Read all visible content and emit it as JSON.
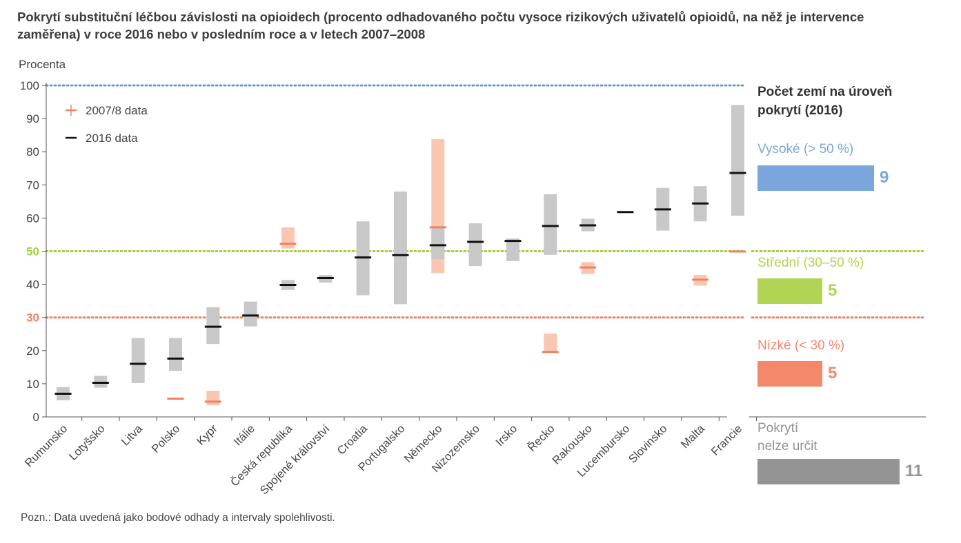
{
  "title_lines": [
    "Pokrytí substituční léčbou závislosti na opioidech (procento odhadovaného počtu vysoce rizikových uživatelů opioidů, na něž je intervence",
    "zaměřena) v roce 2016 nebo v posledním roce a v letech 2007–2008"
  ],
  "note": "Pozn.: Data uvedená jako bodové odhady a intervaly spolehlivosti.",
  "colors": {
    "grey_range": "#c8c8c8",
    "salmon_range": "#f9c6b2",
    "marker_2016": "#111111",
    "marker_2007": "#f08060",
    "high": "#7aa6db",
    "medium": "#b2d454",
    "low": "#f4886a",
    "undetermined": "#949494"
  },
  "chart_data": {
    "type": "range-point",
    "ylabel": "Procenta",
    "ylim": [
      0,
      100
    ],
    "yticks": [
      0,
      10,
      20,
      30,
      40,
      50,
      60,
      70,
      80,
      90,
      100
    ],
    "legend": [
      {
        "name": "2007/8 data",
        "color": "#f08060"
      },
      {
        "name": "2016 data",
        "color": "#111111"
      }
    ],
    "reference_lines": [
      {
        "value": 100,
        "color": "#6b97db"
      },
      {
        "value": 50,
        "color": "#a8cf3c"
      },
      {
        "value": 30,
        "color": "#f08060"
      }
    ],
    "countries": [
      {
        "name": "Rumunsko",
        "d2016": 7,
        "r2016": [
          5,
          9
        ],
        "d2007": null,
        "r2007": null
      },
      {
        "name": "Lotyšsko",
        "d2016": 10.3,
        "r2016": [
          8.8,
          12.4
        ],
        "d2007": null,
        "r2007": null
      },
      {
        "name": "Litva",
        "d2016": 16,
        "r2016": [
          10.2,
          23.8
        ],
        "d2007": null,
        "r2007": null
      },
      {
        "name": "Polsko",
        "d2016": 17.6,
        "r2016": [
          13.9,
          23.8
        ],
        "d2007": 5.5,
        "r2007": null
      },
      {
        "name": "Kypr",
        "d2016": 27.2,
        "r2016": [
          22,
          33.1
        ],
        "d2007": 4.6,
        "r2007": [
          3.5,
          7.9
        ]
      },
      {
        "name": "Itálie",
        "d2016": 30.6,
        "r2016": [
          27.3,
          34.8
        ],
        "d2007": null,
        "r2007": null
      },
      {
        "name": "Česká republika",
        "d2016": 39.8,
        "r2016": [
          38.3,
          41.3
        ],
        "d2007": 52.2,
        "r2007": [
          50.8,
          57.2
        ]
      },
      {
        "name": "Spojené království",
        "d2016": 41.9,
        "r2016": [
          40.5,
          42.8
        ],
        "d2007": null,
        "r2007": null
      },
      {
        "name": "Croatia",
        "d2016": 48.1,
        "r2016": [
          36.7,
          59
        ],
        "d2007": null,
        "r2007": null
      },
      {
        "name": "Portugalsko",
        "d2016": 48.8,
        "r2016": [
          34,
          68
        ],
        "d2007": null,
        "r2007": null
      },
      {
        "name": "Německo",
        "d2016": 51.8,
        "r2016": [
          47.6,
          57.2
        ],
        "d2007": 57.2,
        "r2007": [
          43.4,
          83.8
        ]
      },
      {
        "name": "Nizozemsko",
        "d2016": 52.8,
        "r2016": [
          45.5,
          58.4
        ],
        "d2007": null,
        "r2007": null
      },
      {
        "name": "Irsko",
        "d2016": 53.1,
        "r2016": [
          47,
          53.8
        ],
        "d2007": null,
        "r2007": null
      },
      {
        "name": "Řecko",
        "d2016": 57.6,
        "r2016": [
          48.9,
          67.2
        ],
        "d2007": 19.6,
        "r2007": [
          19.6,
          25.1
        ]
      },
      {
        "name": "Rakousko",
        "d2016": 57.8,
        "r2016": [
          56,
          59.8
        ],
        "d2007": 45.1,
        "r2007": [
          43.1,
          46.7
        ]
      },
      {
        "name": "Lucembursko",
        "d2016": 61.8,
        "r2016": null,
        "d2007": null,
        "r2007": null
      },
      {
        "name": "Slovinsko",
        "d2016": 62.6,
        "r2016": [
          56.2,
          69.1
        ],
        "d2007": null,
        "r2007": null
      },
      {
        "name": "Malta",
        "d2016": 64.4,
        "r2016": [
          59,
          69.6
        ],
        "d2007": 41.4,
        "r2007": [
          39.6,
          42.8
        ]
      },
      {
        "name": "Francie",
        "d2016": 73.6,
        "r2016": [
          60.7,
          94.1
        ],
        "d2007": 49.9,
        "r2007": null
      }
    ]
  },
  "panel": {
    "title_lines": [
      "Počet zemí na úroveň",
      "pokrytí (2016)"
    ],
    "categories": [
      {
        "label_lines": [
          "Vysoké (> 50 %)"
        ],
        "count": "9",
        "color_key": "high"
      },
      {
        "label_lines": [
          "Střední (30–50 %)"
        ],
        "count": "5",
        "color_key": "medium"
      },
      {
        "label_lines": [
          "Nízké (< 30 %)"
        ],
        "count": "5",
        "color_key": "low"
      },
      {
        "label_lines": [
          "Pokrytí",
          "nelze určit"
        ],
        "count": "11",
        "color_key": "undetermined"
      }
    ]
  }
}
